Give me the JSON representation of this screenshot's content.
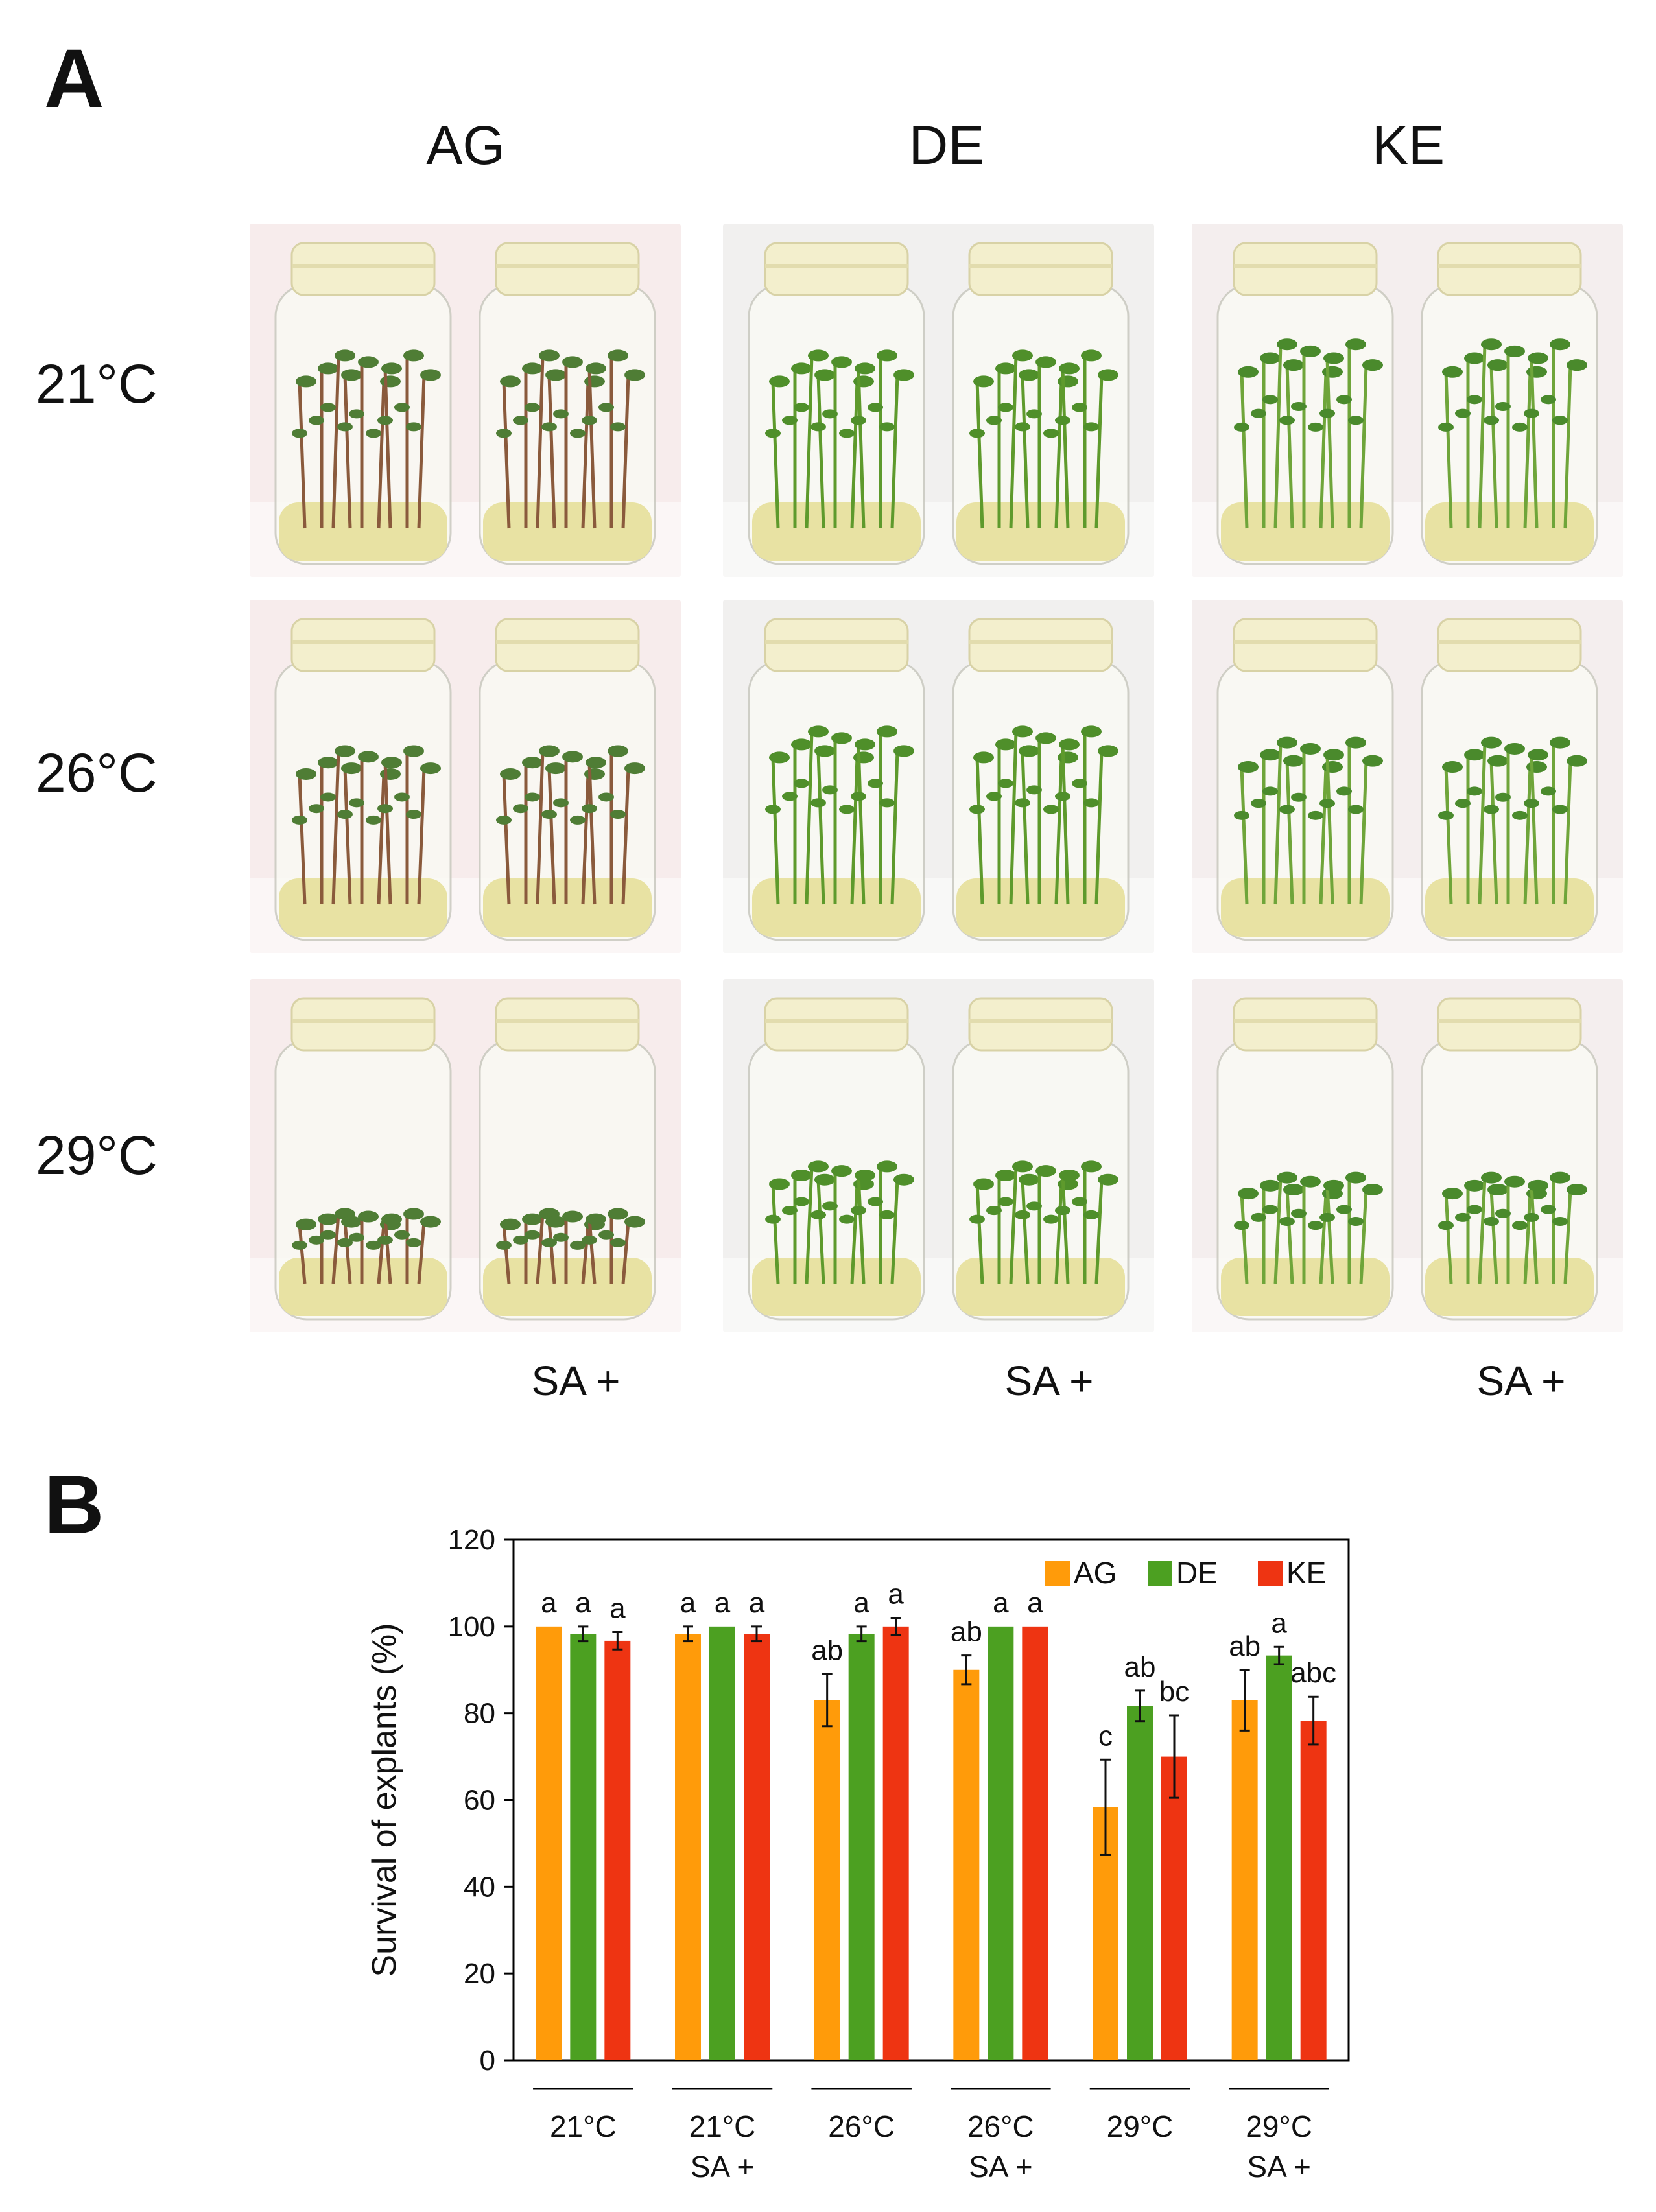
{
  "panel_a": {
    "letter": "A",
    "columns": [
      "AG",
      "DE",
      "KE"
    ],
    "rows": [
      "21°C",
      "26°C",
      "29°C"
    ],
    "sa_labels": [
      "SA +",
      "SA +",
      "SA +"
    ],
    "backgrounds": {
      "AG": "#f7ecec",
      "DE": "#f1f0ef",
      "KE": "#f4eeee"
    },
    "plant_colors": {
      "AG": "#8a5a3c",
      "DE": "#5e9a2c",
      "KE": "#6fa53a"
    },
    "leaf_colors": {
      "AG": "#4f7d35",
      "DE": "#4f8f2a",
      "KE": "#4a8a2c"
    }
  },
  "panel_b": {
    "letter": "B",
    "chart_data": {
      "type": "bar",
      "categories": [
        [
          "21°C",
          ""
        ],
        [
          "21°C",
          "SA +"
        ],
        [
          "26°C",
          ""
        ],
        [
          "26°C",
          "SA +"
        ],
        [
          "29°C",
          ""
        ],
        [
          "29°C",
          "SA +"
        ]
      ],
      "series": [
        {
          "name": "AG",
          "color": "#FF9B0A",
          "values": [
            100,
            98.3,
            83,
            90,
            58.3,
            83
          ],
          "errors": [
            0,
            1.7,
            6,
            3.3,
            11,
            7
          ],
          "letters": [
            "a",
            "a",
            "ab",
            "ab",
            "c",
            "ab"
          ]
        },
        {
          "name": "DE",
          "color": "#4CA021",
          "values": [
            98.3,
            100,
            98.3,
            100,
            81.7,
            93.3
          ],
          "errors": [
            1.7,
            0,
            1.7,
            0,
            3.5,
            2
          ],
          "letters": [
            "a",
            "a",
            "a",
            "a",
            "ab",
            "a"
          ]
        },
        {
          "name": "KE",
          "color": "#EE3412",
          "values": [
            96.7,
            98.3,
            100,
            100,
            70,
            78.3
          ],
          "errors": [
            2,
            1.7,
            2,
            0,
            9.5,
            5.5
          ],
          "letters": [
            "a",
            "a",
            "a",
            "a",
            "bc",
            "abc"
          ]
        }
      ],
      "ylabel": "Survival of explants (%)",
      "xlabel": "",
      "ylim": [
        0,
        120
      ],
      "yticks": [
        0,
        20,
        40,
        60,
        80,
        100,
        120
      ],
      "legend": "top-right",
      "grid": false
    }
  }
}
